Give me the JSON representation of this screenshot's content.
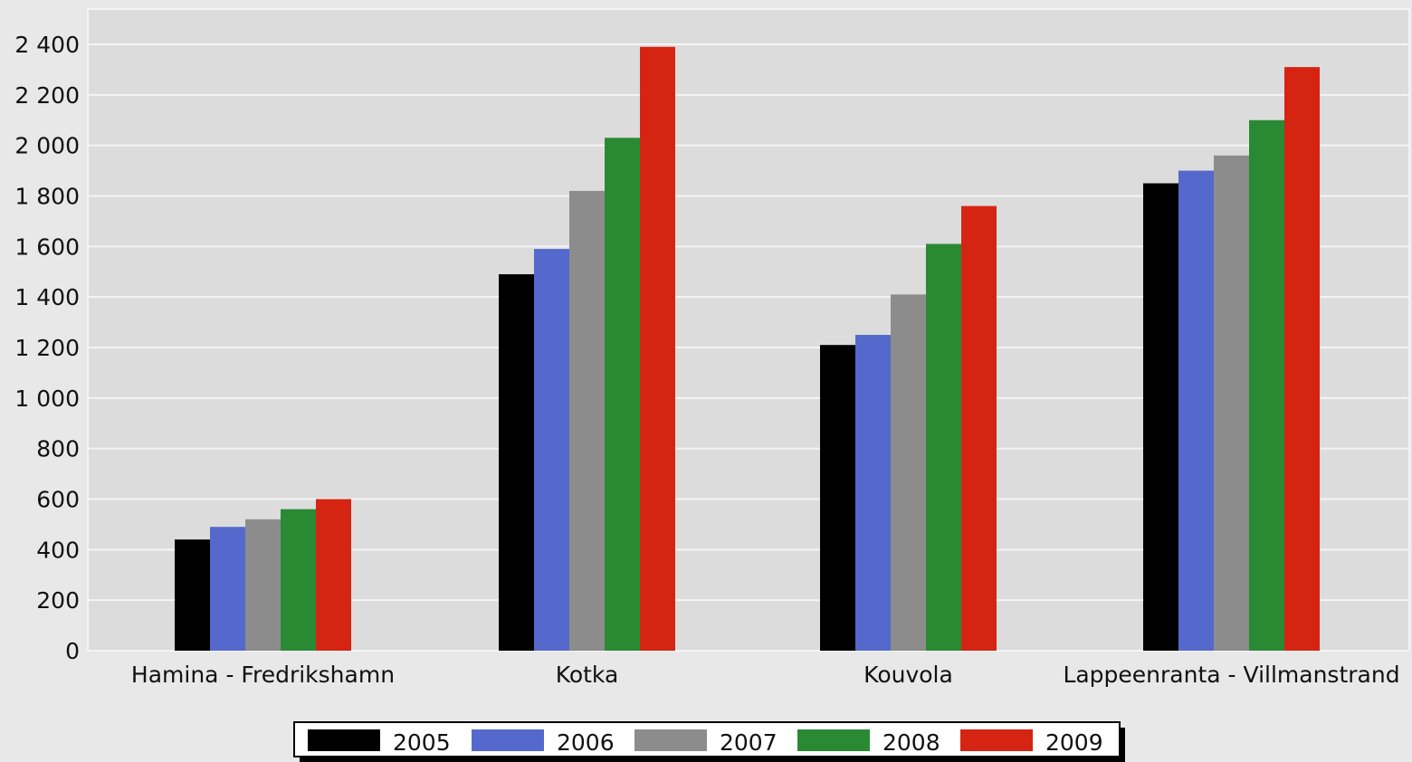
{
  "chart_data": {
    "type": "bar",
    "title": "",
    "xlabel": "",
    "ylabel": "",
    "categories": [
      "Hamina - Fredrikshamn",
      "Kotka",
      "Kouvola",
      "Lappeenranta - Villmanstrand"
    ],
    "series": [
      {
        "name": "2005",
        "color": "#000000",
        "values": [
          440,
          1490,
          1210,
          1850
        ]
      },
      {
        "name": "2006",
        "color": "#5569cc",
        "values": [
          490,
          1590,
          1250,
          1900
        ]
      },
      {
        "name": "2007",
        "color": "#8c8c8c",
        "values": [
          520,
          1820,
          1410,
          1960
        ]
      },
      {
        "name": "2008",
        "color": "#2a8a34",
        "values": [
          560,
          2030,
          1610,
          2100
        ]
      },
      {
        "name": "2009",
        "color": "#d62412",
        "values": [
          600,
          2390,
          1760,
          2310
        ]
      }
    ],
    "ylim": [
      0,
      2400
    ],
    "yticks": [
      0,
      200,
      400,
      600,
      800,
      1000,
      1200,
      1400,
      1600,
      1800,
      2000,
      2200,
      2400
    ],
    "ytick_labels": [
      "0",
      "200",
      "400",
      "600",
      "800",
      "1 000",
      "1 200",
      "1 400",
      "1 600",
      "1 800",
      "2 000",
      "2 200",
      "2 400"
    ],
    "grid": true,
    "legend_position": "bottom-center"
  }
}
